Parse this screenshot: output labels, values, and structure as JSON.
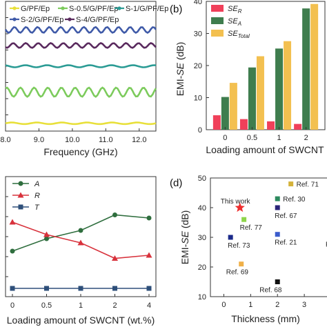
{
  "chart_data": [
    {
      "panel": "a",
      "type": "line",
      "xlabel": "Frequency (GHz)",
      "xlim": [
        8.0,
        12.5
      ],
      "xticks": [
        "8.0",
        "9.0",
        "10.0",
        "11.0",
        "12.0"
      ],
      "ylabel": "",
      "series": [
        {
          "name": "G/PF/Ep",
          "color": "#e8e03a",
          "level": 0.06,
          "amp": 0.006,
          "cycles": 6
        },
        {
          "name": "S-0.5/G/PF/Ep",
          "color": "#7ccb5c",
          "level": 0.3,
          "amp": 0.035,
          "cycles": 11
        },
        {
          "name": "S-1/G/PF/Ep",
          "color": "#2a9b94",
          "level": 0.5,
          "amp": 0.008,
          "cycles": 7
        },
        {
          "name": "S-2/G/PF/Ep",
          "color": "#3f5aa8",
          "level": 0.78,
          "amp": 0.022,
          "cycles": 13
        },
        {
          "name": "S-4/G/PF/Ep",
          "color": "#5a2a5e",
          "level": 0.66,
          "amp": 0.018,
          "cycles": 12
        }
      ]
    },
    {
      "panel": "b",
      "type": "bar",
      "xlabel": "Loading amount of SWCNT",
      "ylabel": "EMI-SE (dB)",
      "ylim": [
        0,
        40
      ],
      "yticks": [
        "0",
        "10",
        "20",
        "30",
        "40"
      ],
      "categories": [
        "0",
        "0.5",
        "1",
        "2"
      ],
      "series": [
        {
          "name": "SE_R",
          "label": "SE",
          "sub": "R",
          "color": "#f0405a",
          "values": [
            4.5,
            3.3,
            2.6,
            1.8
          ]
        },
        {
          "name": "SE_A",
          "label": "SE",
          "sub": "A",
          "color": "#3f7d4e",
          "values": [
            10.2,
            19.4,
            25.3,
            37.8
          ]
        },
        {
          "name": "SE_Total",
          "label": "SE",
          "sub": "Total",
          "color": "#f3c050",
          "values": [
            14.6,
            22.9,
            27.6,
            39.2
          ]
        }
      ]
    },
    {
      "panel": "c",
      "type": "line",
      "xlabel": "Loading amount of SWCNT (wt.%)",
      "ylim": [
        0,
        1
      ],
      "categories": [
        "0",
        "0.5",
        "1",
        "2",
        "4"
      ],
      "series": [
        {
          "name": "A",
          "color": "#2f6e3e",
          "marker": "circle",
          "values": [
            0.36,
            0.48,
            0.56,
            0.71,
            0.68
          ]
        },
        {
          "name": "R",
          "color": "#d8323c",
          "marker": "triangle",
          "values": [
            0.64,
            0.52,
            0.44,
            0.29,
            0.32
          ]
        },
        {
          "name": "T",
          "color": "#2e4f7a",
          "marker": "square",
          "values": [
            0.0,
            0.0,
            0.0,
            0.0,
            0.0
          ]
        }
      ]
    },
    {
      "panel": "d",
      "type": "scatter",
      "xlabel": "Thickness (mm)",
      "ylabel": "EMI-SE (dB)",
      "xlim": [
        -0.5,
        4
      ],
      "ylim": [
        10,
        50
      ],
      "xticks": [
        "0",
        "1",
        "2",
        "3"
      ],
      "yticks": [
        "10",
        "20",
        "30",
        "40",
        "50"
      ],
      "points": [
        {
          "label": "This work",
          "x": 0.6,
          "y": 40,
          "color": "#ee2d2d",
          "marker": "star"
        },
        {
          "label": "Ref. 71",
          "x": 2.5,
          "y": 48,
          "color": "#d4b23a",
          "marker": "square"
        },
        {
          "label": "Ref. 30",
          "x": 2.0,
          "y": 43,
          "color": "#2c8a5e",
          "marker": "square"
        },
        {
          "label": "Ref. 67",
          "x": 2.0,
          "y": 40,
          "color": "#2a2478",
          "marker": "square"
        },
        {
          "label": "Ref. 77",
          "x": 0.75,
          "y": 36,
          "color": "#8ed54a",
          "marker": "square"
        },
        {
          "label": "Ref. 21",
          "x": 2.0,
          "y": 31,
          "color": "#3b5ccc",
          "marker": "square"
        },
        {
          "label": "Ref. 73",
          "x": 0.25,
          "y": 30,
          "color": "#1b2a8a",
          "marker": "square"
        },
        {
          "label": "Ref. 69",
          "x": 0.65,
          "y": 21,
          "color": "#f0b048",
          "marker": "square"
        },
        {
          "label": "Ref. 68",
          "x": 2.0,
          "y": 15,
          "color": "#111111",
          "marker": "square"
        },
        {
          "label": "R",
          "x": 4.0,
          "y": 25,
          "color": "#f0a040",
          "marker": "square"
        }
      ]
    }
  ],
  "panels": {
    "b_label": "(b)",
    "d_label": "(d)"
  }
}
